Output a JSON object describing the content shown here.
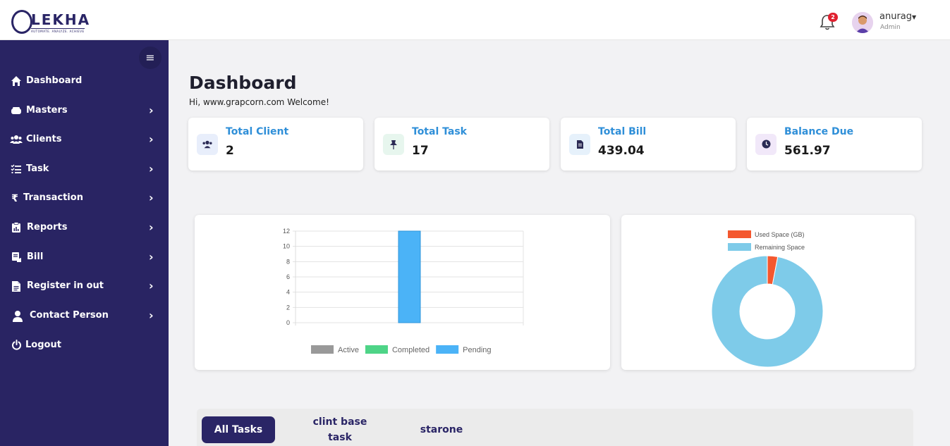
{
  "brand": {
    "name": "LEKHA",
    "tagline": "AUTOMATE. ANALYZE. ACHIEVE"
  },
  "header": {
    "notification_count": "2",
    "user_name": "anurag",
    "user_role": "Admin"
  },
  "sidebar": {
    "items": [
      {
        "label": "Dashboard",
        "icon": "home-icon",
        "has_chevron": false
      },
      {
        "label": "Masters",
        "icon": "masters-icon",
        "has_chevron": true
      },
      {
        "label": "Clients",
        "icon": "users-icon",
        "has_chevron": true
      },
      {
        "label": "Task",
        "icon": "task-list-icon",
        "has_chevron": true
      },
      {
        "label": "Transaction",
        "icon": "rupee-icon",
        "has_chevron": true
      },
      {
        "label": "Reports",
        "icon": "report-icon",
        "has_chevron": true
      },
      {
        "label": "Bill",
        "icon": "bill-icon",
        "has_chevron": true
      },
      {
        "label": "Register in out",
        "icon": "document-icon",
        "has_chevron": true
      },
      {
        "label": "Contact Person",
        "icon": "person-icon",
        "has_chevron": true
      },
      {
        "label": "Logout",
        "icon": "power-icon",
        "has_chevron": false
      }
    ]
  },
  "main": {
    "title": "Dashboard",
    "welcome": "Hi, www.grapcorn.com Welcome!",
    "cards": [
      {
        "title": "Total Client",
        "value": "2",
        "icon": "users-icon",
        "icon_bg": "#e8eefb"
      },
      {
        "title": "Total Task",
        "value": "17",
        "icon": "pin-icon",
        "icon_bg": "#e7f6ee"
      },
      {
        "title": "Total Bill",
        "value": "439.04",
        "icon": "bill-icon",
        "icon_bg": "#e6f1fb"
      },
      {
        "title": "Balance Due",
        "value": "561.97",
        "icon": "clock-icon",
        "icon_bg": "#f1e8f9"
      }
    ],
    "tabs": [
      {
        "label": "All Tasks",
        "active": true
      },
      {
        "label": "clint base task",
        "active": false
      },
      {
        "label": "starone",
        "active": false
      }
    ]
  },
  "chart_data": [
    {
      "type": "bar",
      "categories": [
        "",
        "",
        ""
      ],
      "series": [
        {
          "name": "Active",
          "color": "#999999",
          "values": [
            0,
            0,
            0
          ]
        },
        {
          "name": "Completed",
          "color": "#4ed487",
          "values": [
            0,
            0,
            0
          ]
        },
        {
          "name": "Pending",
          "color": "#4bb3f7",
          "values": [
            0,
            12,
            0
          ]
        }
      ],
      "yticks": [
        "0",
        "2",
        "4",
        "6",
        "8",
        "10",
        "12"
      ],
      "ylim": [
        0,
        12
      ],
      "legend": "bottom",
      "grid": true
    },
    {
      "type": "pie",
      "donut": true,
      "labels": [
        "Used Space (GB)",
        "Remaining Space"
      ],
      "colors": [
        "#f4582f",
        "#7ecbe9"
      ],
      "values": [
        3,
        97
      ],
      "legend": "top"
    }
  ]
}
